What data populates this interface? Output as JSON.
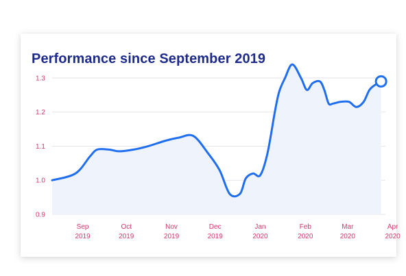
{
  "title": "Performance since September 2019",
  "colors": {
    "title": "#1d2a8c",
    "tick_labels": "#d6336c",
    "line": "#1f6ef0",
    "area_fill": "#eef3fc",
    "gridline": "#e4e4ea"
  },
  "chart_data": {
    "type": "area",
    "title": "Performance since September 2019",
    "xlabel": "",
    "ylabel": "",
    "ylim": [
      0.9,
      1.35
    ],
    "yticks": [
      "0.9",
      "1.0",
      "1.1",
      "1.2",
      "1.3"
    ],
    "grid": true,
    "legend": "none",
    "xticks": [
      {
        "month": "Sep",
        "year": "2019"
      },
      {
        "month": "Oct",
        "year": "2019"
      },
      {
        "month": "Nov",
        "year": "2019"
      },
      {
        "month": "Dec",
        "year": "2019"
      },
      {
        "month": "Jan",
        "year": "2020"
      },
      {
        "month": "Feb",
        "year": "2020"
      },
      {
        "month": "Mar",
        "year": "2020"
      },
      {
        "month": "Apr",
        "year": "2020"
      }
    ],
    "series": [
      {
        "x": [
          "2019-08-25",
          "2019-09-10",
          "2019-09-20",
          "2019-09-25",
          "2019-10-03",
          "2019-10-10",
          "2019-10-20",
          "2019-10-30",
          "2019-11-10",
          "2019-11-20",
          "2019-11-30",
          "2019-12-10",
          "2019-12-18",
          "2019-12-25",
          "2020-01-01",
          "2020-01-05",
          "2020-01-10",
          "2020-01-15",
          "2020-01-20",
          "2020-01-25",
          "2020-01-28",
          "2020-02-01",
          "2020-02-06",
          "2020-02-12",
          "2020-02-16",
          "2020-02-20",
          "2020-02-25",
          "2020-02-28",
          "2020-03-02",
          "2020-03-05",
          "2020-03-10",
          "2020-03-16",
          "2020-03-21",
          "2020-03-26",
          "2020-03-30",
          "2020-04-03",
          "2020-04-07"
        ],
        "values": [
          1.0,
          1.02,
          1.07,
          1.09,
          1.09,
          1.085,
          1.09,
          1.1,
          1.115,
          1.125,
          1.13,
          1.08,
          1.03,
          0.96,
          0.96,
          1.005,
          1.02,
          1.015,
          1.08,
          1.2,
          1.26,
          1.3,
          1.34,
          1.3,
          1.265,
          1.285,
          1.29,
          1.265,
          1.225,
          1.225,
          1.23,
          1.23,
          1.215,
          1.23,
          1.265,
          1.28,
          1.29
        ]
      }
    ],
    "last_point": {
      "x": "2020-04-07",
      "value": 1.29
    }
  }
}
